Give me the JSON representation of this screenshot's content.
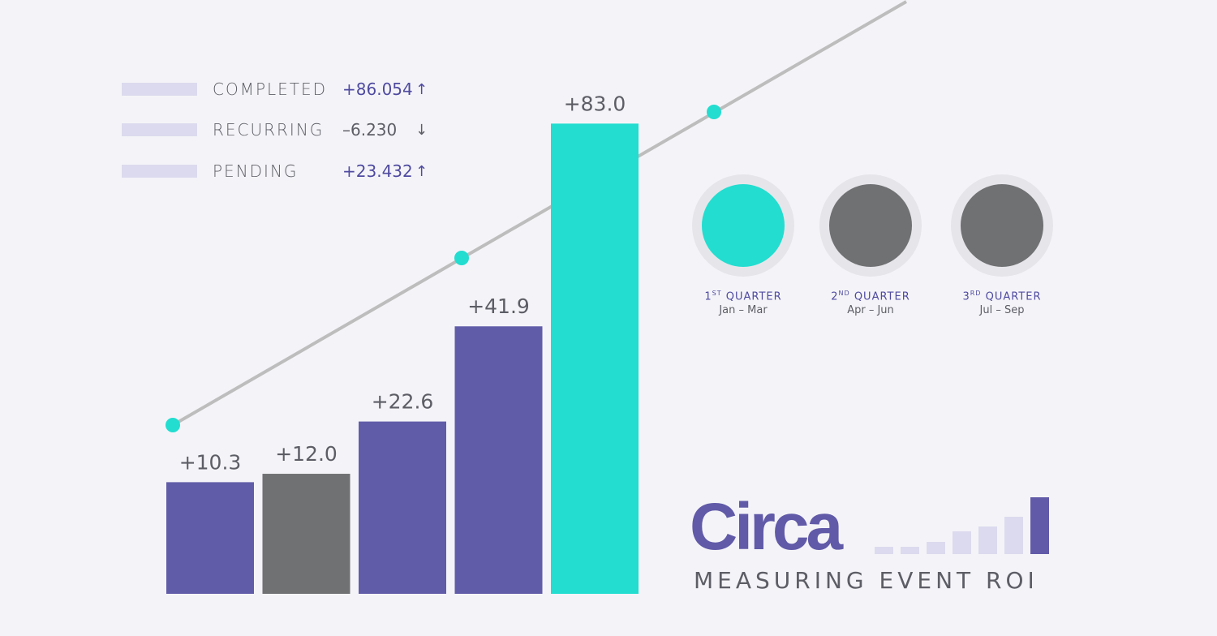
{
  "legend": [
    {
      "label": "COMPLETED",
      "value": "+86.054",
      "arrow": "↑",
      "negative": false
    },
    {
      "label": "RECURRING",
      "value": "–6.230",
      "arrow": "↓",
      "negative": true
    },
    {
      "label": "PENDING",
      "value": "+23.432",
      "arrow": "↑",
      "negative": false
    }
  ],
  "quarters": [
    {
      "num": "1",
      "suffix": "ST",
      "word": "QUARTER",
      "range": "Jan – Mar",
      "color": "#22ddd0"
    },
    {
      "num": "2",
      "suffix": "ND",
      "word": "QUARTER",
      "range": "Apr – Jun",
      "color": "#707173"
    },
    {
      "num": "3",
      "suffix": "RD",
      "word": "QUARTER",
      "range": "Jul – Sep",
      "color": "#707173"
    }
  ],
  "logo": {
    "word": "Circa",
    "tagline": "MEASURING EVENT ROI"
  },
  "chart_data": {
    "type": "bar",
    "values": [
      10.3,
      12.0,
      22.6,
      41.9,
      83.0
    ],
    "labels": [
      "+10.3",
      "+12.0",
      "+22.6",
      "+41.9",
      "+83.0"
    ],
    "colors": [
      "#615ca8",
      "#707173",
      "#615ca8",
      "#615ca8",
      "#22ddd0"
    ],
    "trend_line": {
      "color": "#bdbdbd",
      "marker_color": "#22ddd0"
    }
  }
}
